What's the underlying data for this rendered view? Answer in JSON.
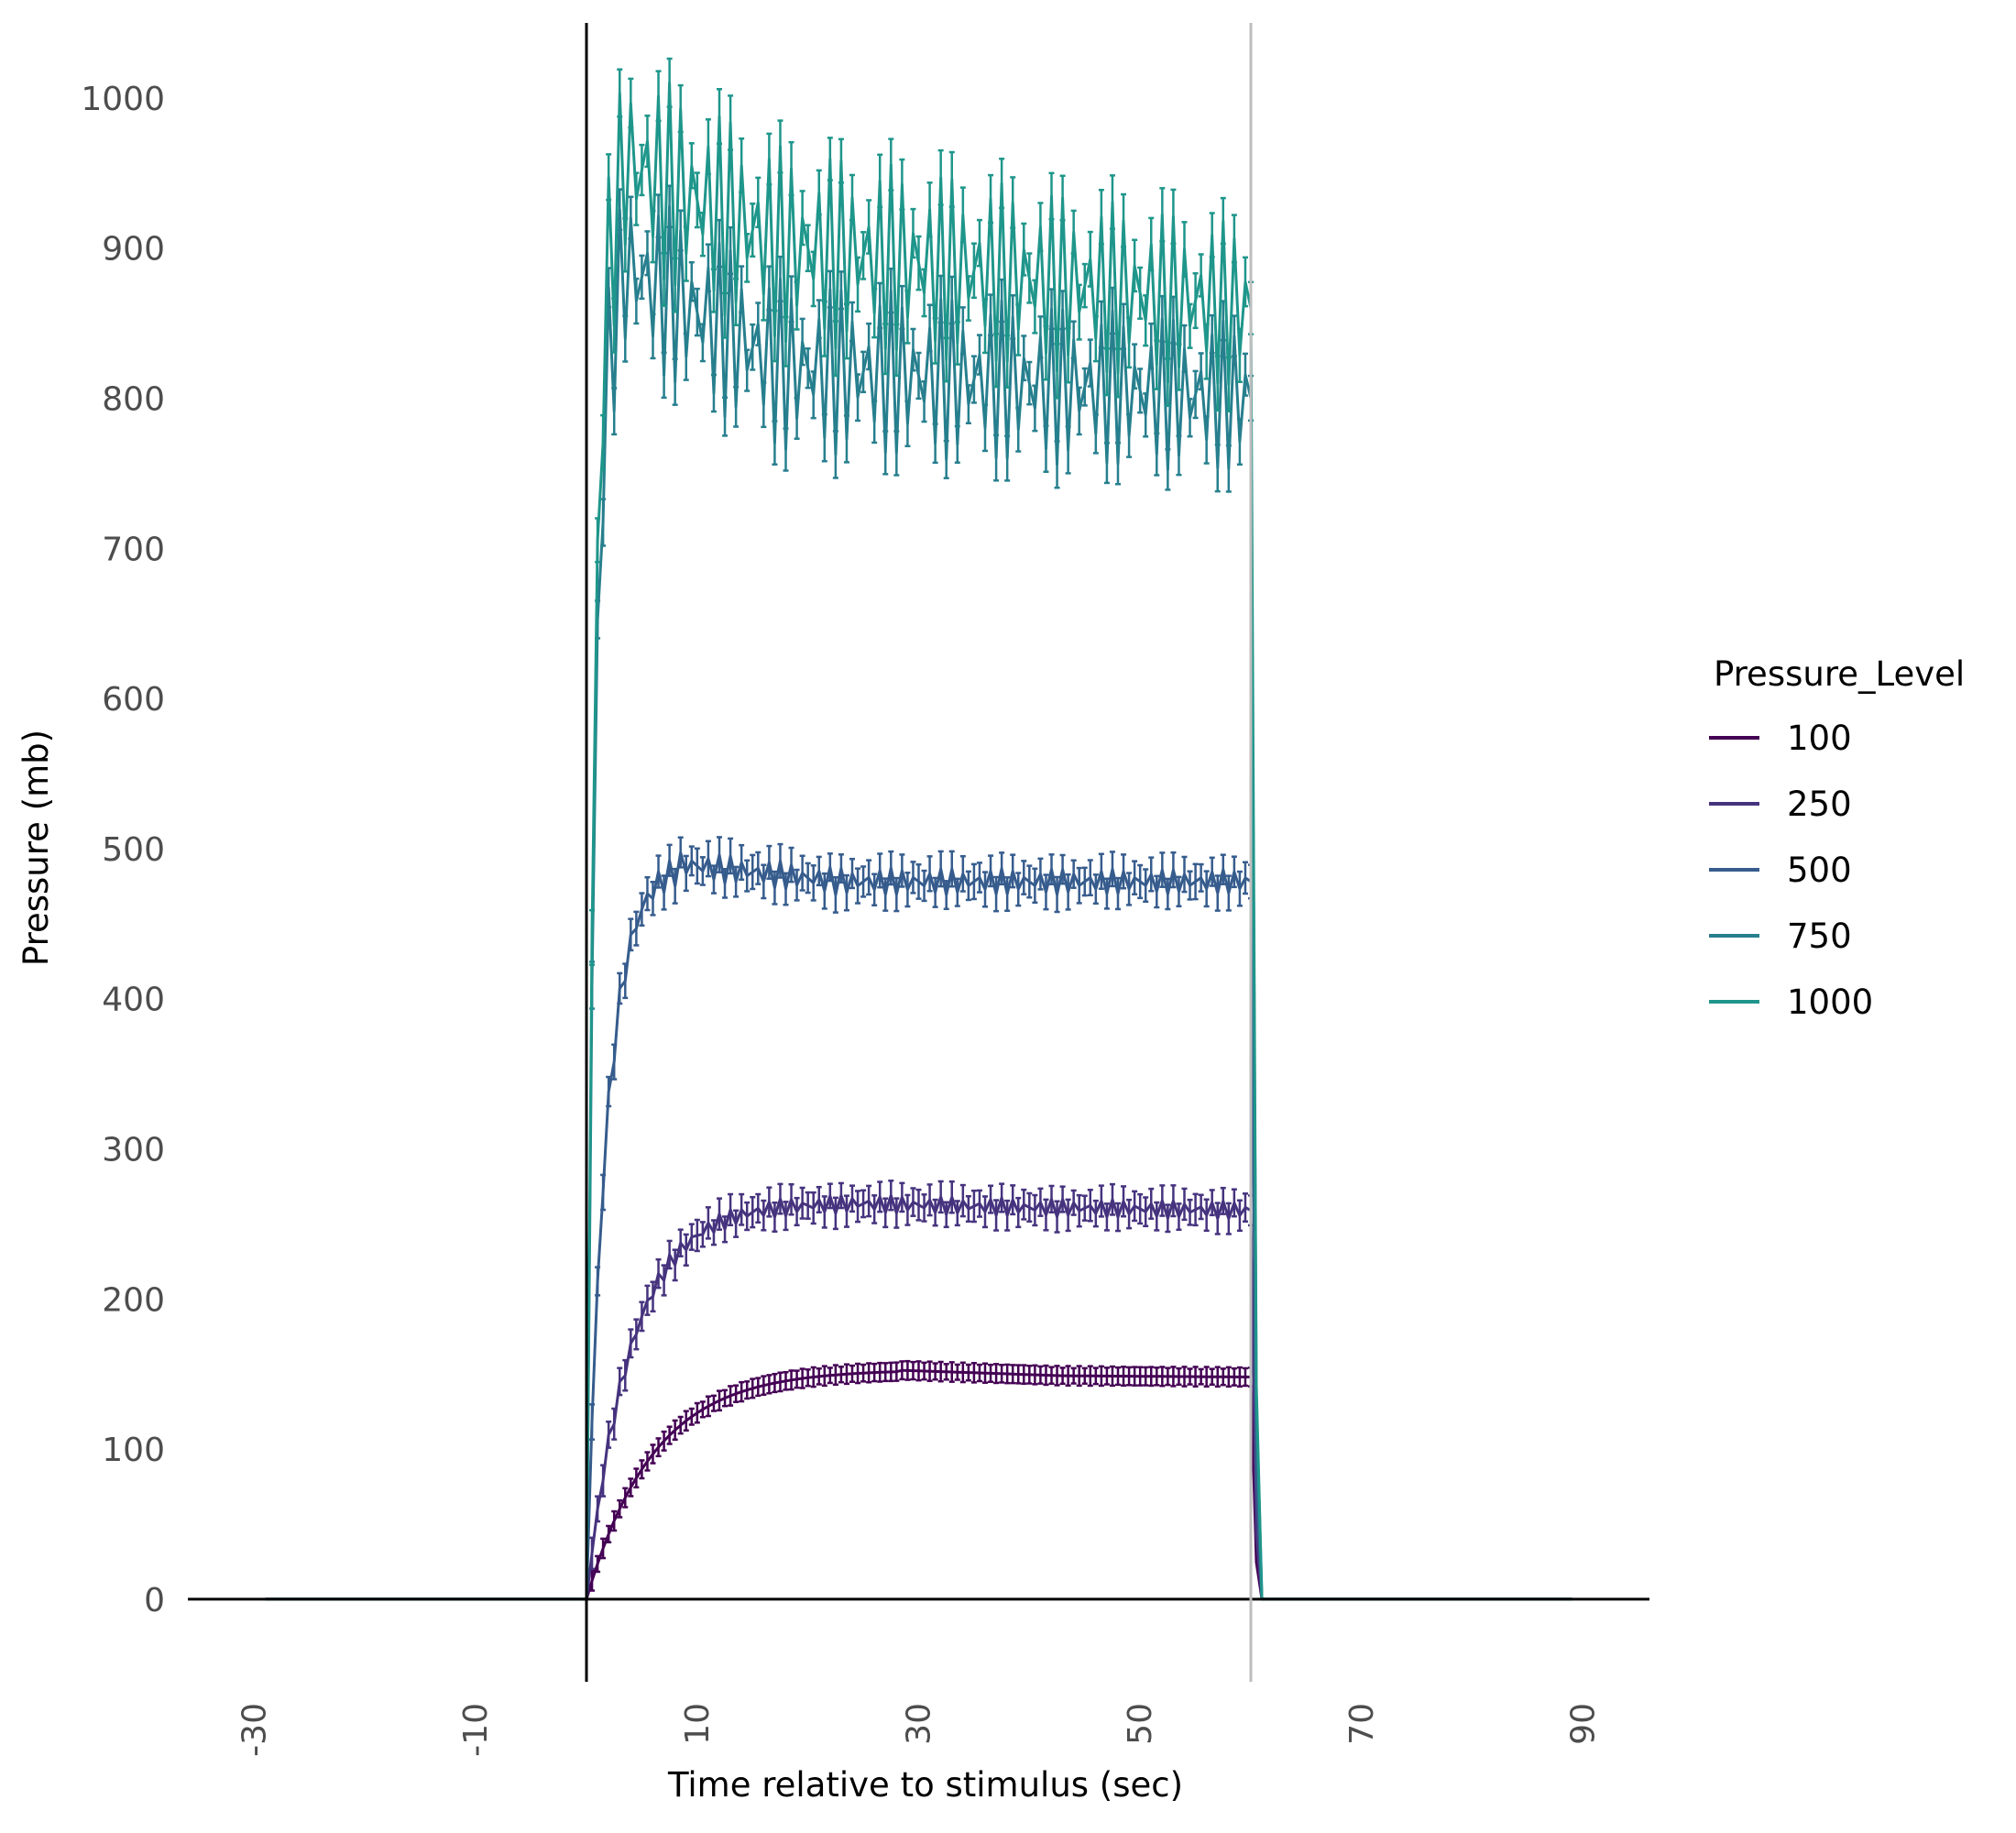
{
  "chart_data": {
    "type": "line",
    "xlabel": "Time relative to stimulus (sec)",
    "ylabel": "Pressure (mb)",
    "xlim": [
      -36,
      96
    ],
    "ylim": [
      -55,
      1050
    ],
    "x_ticks": [
      -30,
      -10,
      10,
      30,
      50,
      70,
      90
    ],
    "y_ticks": [
      0,
      100,
      200,
      300,
      400,
      500,
      600,
      700,
      800,
      900,
      1000
    ],
    "grid": false,
    "reference_lines": [
      {
        "x": 0,
        "color": "#000000"
      },
      {
        "x": 60,
        "color": "#bebebe"
      }
    ],
    "legend": {
      "title": "Pressure_Level",
      "position": "right"
    },
    "time_step": 0.5,
    "stimulus_window": [
      0,
      60
    ],
    "series": [
      {
        "name": "100",
        "color": "#440154",
        "plateau": 150,
        "peak": 153,
        "peak_time": 28,
        "final": 148,
        "tau": 6,
        "err": 5,
        "osc": 0,
        "osc_end": 0
      },
      {
        "name": "250",
        "color": "#46337e",
        "plateau": 263,
        "peak": 264,
        "peak_time": 24,
        "final": 259,
        "tau": 4,
        "err": 8,
        "osc": 6,
        "osc_end": 6
      },
      {
        "name": "500",
        "color": "#365c8d",
        "plateau": 478,
        "peak": 490,
        "peak_time": 8,
        "final": 478,
        "tau": 1.8,
        "err": 9,
        "osc": 10,
        "osc_end": 8
      },
      {
        "name": "750",
        "color": "#277f8e",
        "plateau": 820,
        "peak": 890,
        "peak_time": 3,
        "final": 800,
        "tau": 0.8,
        "err": 12,
        "osc": 60,
        "osc_end": 50
      },
      {
        "name": "1000",
        "color": "#1f968b",
        "plateau": 900,
        "peak": 960,
        "peak_time": 3,
        "final": 860,
        "tau": 0.8,
        "err": 14,
        "osc": 70,
        "osc_end": 55
      }
    ]
  }
}
